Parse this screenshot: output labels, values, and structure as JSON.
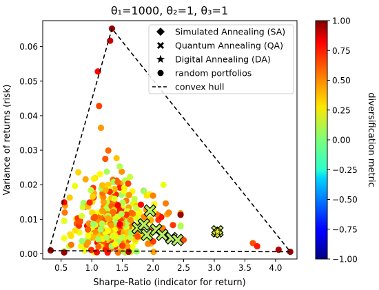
{
  "chart_data": {
    "type": "scatter",
    "title": "θ₁=1000, θ₂=1, θ₃=1",
    "xlabel": "Sharpe-Ratio (indicator for return)",
    "ylabel": "Variance of returns (risk)",
    "xlim": [
      0.2,
      4.35
    ],
    "ylim": [
      -0.0015,
      0.0675
    ],
    "xticks": [
      0.5,
      1.0,
      1.5,
      2.0,
      2.5,
      3.0,
      3.5,
      4.0
    ],
    "xtick_labels": [
      "0.5",
      "1.0",
      "1.5",
      "2.0",
      "2.5",
      "3.0",
      "3.5",
      "4.0"
    ],
    "yticks": [
      0.0,
      0.01,
      0.02,
      0.03,
      0.04,
      0.05,
      0.06
    ],
    "ytick_labels": [
      "0.00",
      "0.01",
      "0.02",
      "0.03",
      "0.04",
      "0.05",
      "0.06"
    ],
    "colorbar": {
      "label": "diversification metric",
      "range": [
        -1.0,
        1.0
      ],
      "ticks": [
        1.0,
        0.75,
        0.5,
        0.25,
        0.0,
        -0.25,
        -0.5,
        -0.75,
        -1.0
      ],
      "tick_labels": [
        "1.00",
        "0.75",
        "0.50",
        "0.25",
        "0.00",
        "−0.25",
        "−0.50",
        "−0.75",
        "−1.00"
      ],
      "colormap": "jet"
    },
    "legend": {
      "placement": "top-right",
      "entries": [
        {
          "label": "Simulated Annealing (SA)",
          "marker": "diamond"
        },
        {
          "label": "Quantum Annealing (QA)",
          "marker": "x"
        },
        {
          "label": "Digital Annealing (DA)",
          "marker": "star"
        },
        {
          "label": "random portfolios",
          "marker": "circle"
        },
        {
          "label": "convex hull",
          "marker": "dashed-line"
        }
      ]
    },
    "convex_hull": [
      [
        0.3,
        0.0009
      ],
      [
        1.33,
        0.0652
      ],
      [
        4.24,
        0.0006
      ],
      [
        0.3,
        0.0009
      ]
    ],
    "random_portfolios_outliers": [
      {
        "x": 1.33,
        "y": 0.0652,
        "c": 0.95
      },
      {
        "x": 1.3,
        "y": 0.0617,
        "c": 0.85
      },
      {
        "x": 1.1,
        "y": 0.0528,
        "c": 0.75
      },
      {
        "x": 1.12,
        "y": 0.0428,
        "c": 0.62
      },
      {
        "x": 1.15,
        "y": 0.0365,
        "c": 0.45
      },
      {
        "x": 0.55,
        "y": 0.0149,
        "c": 0.75
      },
      {
        "x": 0.33,
        "y": 0.001,
        "c": 0.95
      },
      {
        "x": 0.55,
        "y": 0.0004,
        "c": 0.95
      },
      {
        "x": 1.6,
        "y": 0.0006,
        "c": 0.9
      },
      {
        "x": 2.45,
        "y": 0.0113,
        "c": 0.95
      },
      {
        "x": 2.5,
        "y": 0.004,
        "c": 0.6
      },
      {
        "x": 3.63,
        "y": 0.0031,
        "c": 0.6
      },
      {
        "x": 3.7,
        "y": 0.0022,
        "c": 0.7
      },
      {
        "x": 4.05,
        "y": 0.0012,
        "c": 0.9
      },
      {
        "x": 4.24,
        "y": 0.0006,
        "c": 0.95
      }
    ],
    "random_portfolios_cluster": {
      "count": 420,
      "x_center": 1.35,
      "y_center": 0.0095,
      "color_range": [
        0.05,
        0.85
      ]
    },
    "quantum_annealing": [
      {
        "x": 1.75,
        "y": 0.0075
      },
      {
        "x": 1.85,
        "y": 0.0085
      },
      {
        "x": 1.9,
        "y": 0.0055
      },
      {
        "x": 1.95,
        "y": 0.0125
      },
      {
        "x": 2.05,
        "y": 0.007
      },
      {
        "x": 2.15,
        "y": 0.0055
      },
      {
        "x": 2.3,
        "y": 0.0045
      },
      {
        "x": 2.4,
        "y": 0.004
      },
      {
        "x": 3.05,
        "y": 0.0065
      }
    ],
    "simulated_annealing": [
      {
        "x": 3.05,
        "y": 0.0062
      }
    ],
    "digital_annealing": [
      {
        "x": 3.05,
        "y": 0.0064
      }
    ]
  }
}
